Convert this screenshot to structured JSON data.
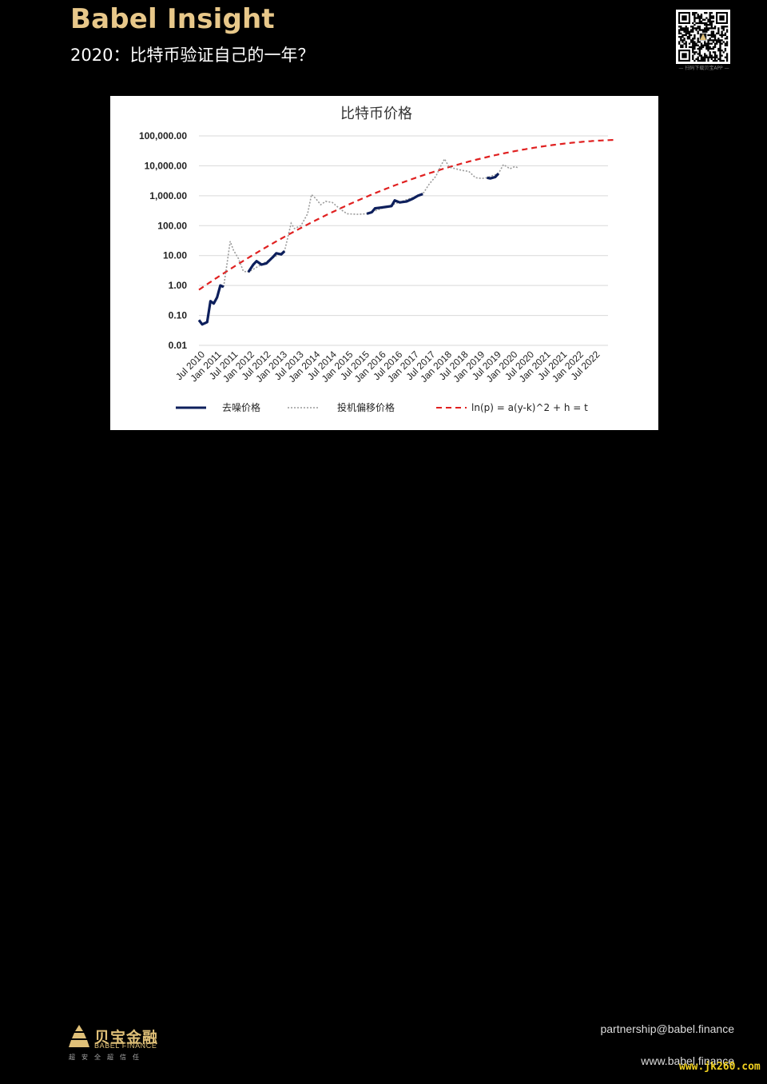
{
  "header": {
    "brand": "Babel Insight",
    "subtitle": "2020：比特币验证自己的一年？",
    "qr_caption": "— 扫码下载贝宝APP —"
  },
  "chart_data": {
    "type": "line",
    "title": "比特币价格",
    "yscale": "log",
    "ylim": [
      0.01,
      100000
    ],
    "y_ticks": [
      "100,000.00",
      "10,000.00",
      "1,000.00",
      "100.00",
      "10.00",
      "1.00",
      "0.10",
      "0.01"
    ],
    "x_ticks": [
      "Jul 2010",
      "Jan 2011",
      "Jul 2011",
      "Jan 2012",
      "Jul 2012",
      "Jan 2013",
      "Jul 2013",
      "Jan 2014",
      "Jul 2014",
      "Jan 2015",
      "Jul 2015",
      "Jan 2016",
      "Jul 2016",
      "Jan 2017",
      "Jul 2017",
      "Jan 2018",
      "Jul 2018",
      "Jan 2019",
      "Jul 2019",
      "Jan 2020",
      "Jul 2020",
      "Jan 2021",
      "Jul 2021",
      "Jan 2022",
      "Jul 2022"
    ],
    "grid": true,
    "legend_position": "bottom",
    "series": [
      {
        "name": "去噪价格",
        "color": "#0d1f5c",
        "style": "solid",
        "points": [
          [
            2010.5,
            0.07
          ],
          [
            2010.6,
            0.05
          ],
          [
            2010.75,
            0.06
          ],
          [
            2010.85,
            0.3
          ],
          [
            2010.95,
            0.25
          ],
          [
            2011.05,
            0.4
          ],
          [
            2011.15,
            1.0
          ],
          [
            2011.25,
            0.9
          ],
          [
            2012.0,
            2.8
          ],
          [
            2012.15,
            5.0
          ],
          [
            2012.25,
            6.5
          ],
          [
            2012.4,
            5.0
          ],
          [
            2012.55,
            5.5
          ],
          [
            2012.75,
            9.0
          ],
          [
            2012.85,
            12.0
          ],
          [
            2013.0,
            11.0
          ],
          [
            2013.1,
            14.0
          ],
          [
            2015.6,
            250
          ],
          [
            2015.75,
            280
          ],
          [
            2015.85,
            380
          ],
          [
            2016.0,
            400
          ],
          [
            2016.15,
            420
          ],
          [
            2016.35,
            450
          ],
          [
            2016.45,
            700
          ],
          [
            2016.6,
            600
          ],
          [
            2016.8,
            640
          ],
          [
            2017.0,
            800
          ],
          [
            2017.15,
            1000
          ],
          [
            2017.3,
            1150
          ],
          [
            2019.25,
            4000
          ],
          [
            2019.35,
            3800
          ],
          [
            2019.5,
            4200
          ],
          [
            2019.6,
            5500
          ]
        ]
      },
      {
        "name": "投机偏移价格",
        "color": "#9a9a9a",
        "style": "dotted",
        "points": [
          [
            2011.25,
            0.9
          ],
          [
            2011.35,
            5
          ],
          [
            2011.45,
            30
          ],
          [
            2011.55,
            15
          ],
          [
            2011.7,
            8
          ],
          [
            2011.85,
            3
          ],
          [
            2012.0,
            2.8
          ],
          [
            2013.1,
            14
          ],
          [
            2013.3,
            120
          ],
          [
            2013.4,
            80
          ],
          [
            2013.6,
            100
          ],
          [
            2013.8,
            250
          ],
          [
            2013.92,
            1100
          ],
          [
            2014.05,
            800
          ],
          [
            2014.2,
            500
          ],
          [
            2014.35,
            650
          ],
          [
            2014.55,
            600
          ],
          [
            2014.8,
            350
          ],
          [
            2015.0,
            250
          ],
          [
            2015.3,
            240
          ],
          [
            2015.6,
            250
          ],
          [
            2017.3,
            1150
          ],
          [
            2017.5,
            2500
          ],
          [
            2017.7,
            4500
          ],
          [
            2017.85,
            10000
          ],
          [
            2017.96,
            17000
          ],
          [
            2018.1,
            9000
          ],
          [
            2018.3,
            8000
          ],
          [
            2018.5,
            7000
          ],
          [
            2018.7,
            6500
          ],
          [
            2018.9,
            4000
          ],
          [
            2019.1,
            3800
          ],
          [
            2019.25,
            4000
          ],
          [
            2019.6,
            5500
          ],
          [
            2019.75,
            11000
          ],
          [
            2019.95,
            8000
          ],
          [
            2020.1,
            9500
          ],
          [
            2020.2,
            8500
          ]
        ]
      },
      {
        "name": "ln(p) = a(y-k)^2 + h = t",
        "color": "#e02020",
        "style": "dashed",
        "model": {
          "x_start": 2010.5,
          "x_end": 2023.1,
          "k": 2023.8,
          "h_log10": 4.88,
          "a_log10": -0.0284
        }
      }
    ]
  },
  "footer": {
    "logo_cn": "贝宝金融",
    "logo_en": "BABEL FINANCE",
    "logo_tagline": "超安全超信任",
    "email": "partnership@babel.finance",
    "website": "www.babel.finance",
    "watermark": "www.jk260.com"
  }
}
